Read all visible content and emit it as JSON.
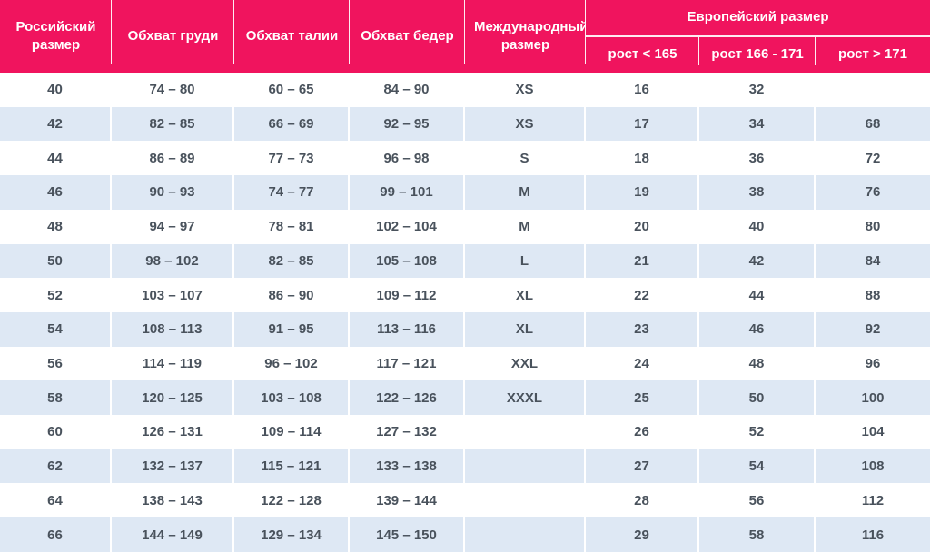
{
  "chart_data": {
    "type": "table",
    "header": {
      "russian_size": "Российский размер",
      "chest": "Обхват груди",
      "waist": "Обхват талии",
      "hips": "Обхват бедер",
      "international_size": "Международный размер",
      "european_size_group": "Европейский размер",
      "height_lt": "рост < 165",
      "height_mid": "рост 166 - 171",
      "height_gt": "рост > 171"
    },
    "rows": [
      [
        "40",
        "74 – 80",
        "60 – 65",
        "84 – 90",
        "XS",
        "16",
        "32",
        ""
      ],
      [
        "42",
        "82 – 85",
        "66 – 69",
        "92 – 95",
        "XS",
        "17",
        "34",
        "68"
      ],
      [
        "44",
        "86 – 89",
        "77 – 73",
        "96 – 98",
        "S",
        "18",
        "36",
        "72"
      ],
      [
        "46",
        "90 – 93",
        "74 – 77",
        "99 – 101",
        "M",
        "19",
        "38",
        "76"
      ],
      [
        "48",
        "94 – 97",
        "78 – 81",
        "102 – 104",
        "M",
        "20",
        "40",
        "80"
      ],
      [
        "50",
        "98 – 102",
        "82 – 85",
        "105 – 108",
        "L",
        "21",
        "42",
        "84"
      ],
      [
        "52",
        "103 – 107",
        "86 – 90",
        "109 – 112",
        "XL",
        "22",
        "44",
        "88"
      ],
      [
        "54",
        "108 – 113",
        "91 – 95",
        "113 – 116",
        "XL",
        "23",
        "46",
        "92"
      ],
      [
        "56",
        "114 – 119",
        "96 – 102",
        "117 – 121",
        "XXL",
        "24",
        "48",
        "96"
      ],
      [
        "58",
        "120 – 125",
        "103 – 108",
        "122 – 126",
        "XXXL",
        "25",
        "50",
        "100"
      ],
      [
        "60",
        "126 – 131",
        "109 – 114",
        "127 – 132",
        "",
        "26",
        "52",
        "104"
      ],
      [
        "62",
        "132 – 137",
        "115 – 121",
        "133 – 138",
        "",
        "27",
        "54",
        "108"
      ],
      [
        "64",
        "138 – 143",
        "122 – 128",
        "139 – 144",
        "",
        "28",
        "56",
        "112"
      ],
      [
        "66",
        "144 – 149",
        "129 – 134",
        "145 – 150",
        "",
        "29",
        "58",
        "116"
      ]
    ]
  },
  "colors": {
    "header_bg": "#F0145E",
    "header_text": "#FFFFFF",
    "row_alt_bg": "#DEE8F4",
    "row_bg": "#FFFFFF",
    "body_text": "#49525C"
  }
}
